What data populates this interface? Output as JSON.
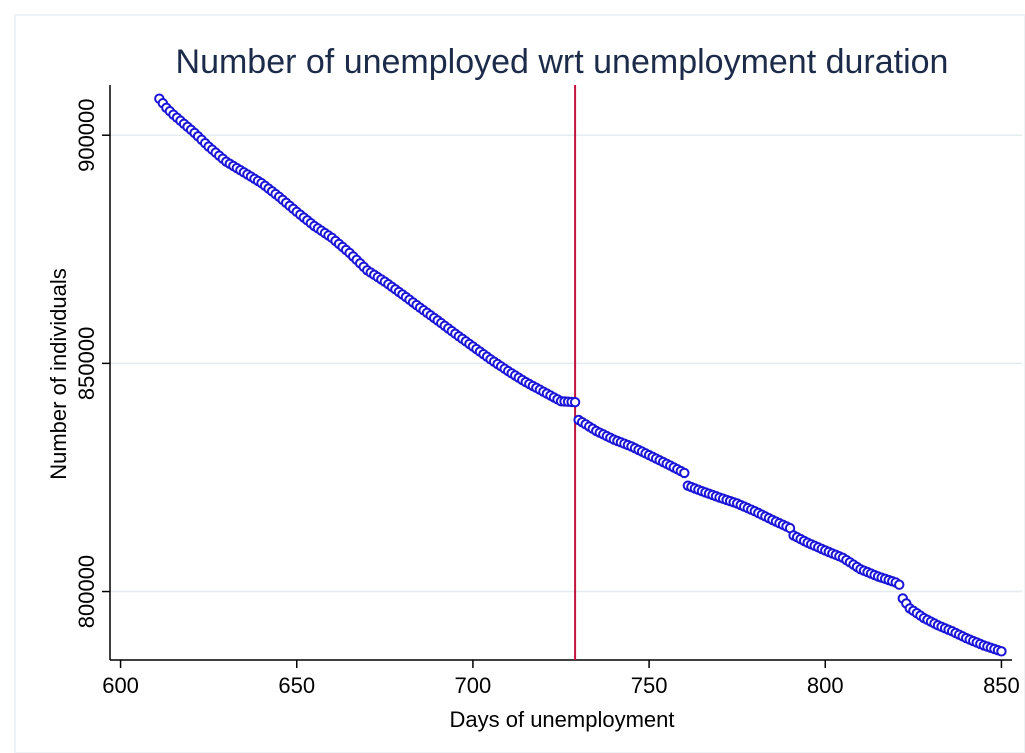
{
  "chart_data": {
    "type": "scatter",
    "title": "Number of unemployed wrt unemployment duration",
    "xlabel": "Days of unemployment",
    "ylabel": "Number of individuals",
    "xlim": [
      597,
      853
    ],
    "ylim": [
      785000,
      911000
    ],
    "xticks": [
      600,
      650,
      700,
      750,
      800,
      850
    ],
    "yticks": [
      800000,
      850000,
      900000
    ],
    "xtick_labels": [
      "600",
      "650",
      "700",
      "750",
      "800",
      "850"
    ],
    "ytick_labels": [
      "800000",
      "850000",
      "900000"
    ],
    "grid": "horizontal",
    "vline": {
      "x": 729,
      "color": "#c0143c"
    },
    "marker": {
      "fill": "#ffffff",
      "stroke": "#1a14d9"
    },
    "segments": [
      {
        "x": [
          611,
          613,
          615,
          618,
          621,
          625,
          630,
          636,
          640,
          645,
          650,
          655,
          660,
          665,
          670,
          675,
          680,
          685,
          690,
          695,
          700,
          705,
          710,
          715,
          720,
          725,
          729
        ],
        "y": [
          908000,
          906000,
          904500,
          902500,
          900500,
          897500,
          894200,
          891400,
          889500,
          886500,
          883200,
          880100,
          877500,
          874200,
          870400,
          867900,
          865100,
          862200,
          859400,
          856500,
          853700,
          850900,
          848300,
          845900,
          843800,
          841700,
          841500
        ]
      },
      {
        "x": [
          730,
          735,
          740,
          745,
          750,
          755,
          760,
          761,
          765,
          770,
          775,
          780,
          785,
          790,
          791,
          795,
          800,
          805,
          810,
          815,
          820,
          821,
          822,
          824,
          828,
          832,
          836,
          840,
          845,
          850
        ],
        "y": [
          837600,
          835200,
          833300,
          831800,
          829900,
          828000,
          826000,
          823200,
          822000,
          820600,
          819300,
          817600,
          815700,
          813900,
          812300,
          810700,
          809000,
          807400,
          804900,
          803300,
          802000,
          801500,
          798500,
          796300,
          794200,
          792600,
          791300,
          789800,
          788200,
          786900
        ]
      }
    ]
  }
}
